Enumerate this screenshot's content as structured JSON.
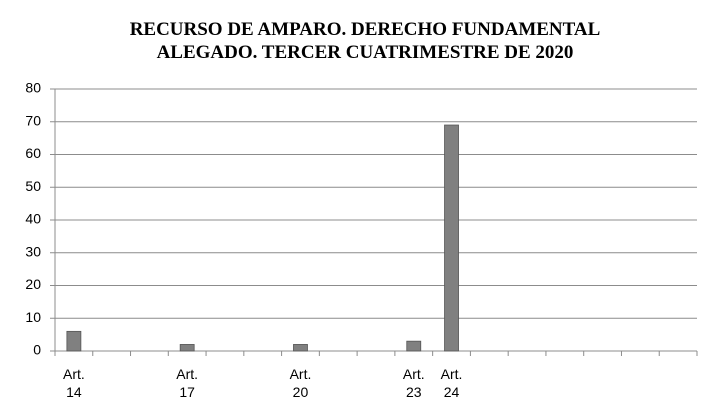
{
  "chart_data": {
    "type": "bar",
    "title": "RECURSO DE AMPARO. DERECHO FUNDAMENTAL ALEGADO. TERCER CUATRIMESTRE DE 2020",
    "categories": [
      "Art. 14",
      null,
      null,
      "Art. 17",
      null,
      null,
      "Art. 20",
      null,
      null,
      "Art. 23",
      "Art. 24",
      null,
      null,
      null,
      null,
      null,
      null
    ],
    "values": [
      6,
      null,
      null,
      2,
      null,
      null,
      2,
      null,
      null,
      3,
      69,
      null,
      null,
      null,
      null,
      null,
      null
    ],
    "color": "#808080",
    "ylim": [
      0,
      80
    ],
    "yticks": [
      0,
      10,
      20,
      30,
      40,
      50,
      60,
      70,
      80
    ],
    "grid": true
  }
}
